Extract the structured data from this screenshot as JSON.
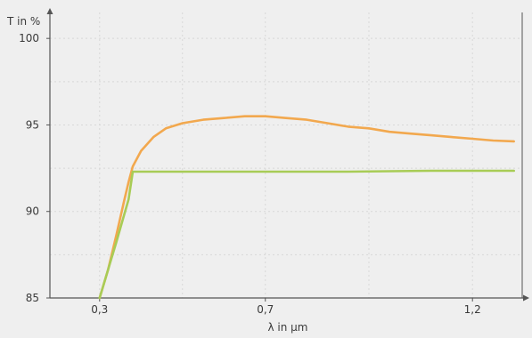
{
  "chart_data": {
    "type": "line",
    "title": "",
    "ylabel": "T in %",
    "xlabel": "λ in µm",
    "xlim": [
      0.18,
      1.32
    ],
    "ylim": [
      85,
      101.5
    ],
    "x_ticks": [
      {
        "value": 0.3,
        "label": "0,3"
      },
      {
        "value": 0.7,
        "label": "0,7"
      },
      {
        "value": 1.2,
        "label": "1,2"
      }
    ],
    "y_ticks": [
      {
        "value": 85,
        "label": "85"
      },
      {
        "value": 90,
        "label": "90"
      },
      {
        "value": 95,
        "label": "95"
      },
      {
        "value": 100,
        "label": "100"
      }
    ],
    "grid": true,
    "legend": "none",
    "series": [
      {
        "color": "#f2a84e",
        "x": [
          0.3,
          0.32,
          0.34,
          0.36,
          0.37,
          0.38,
          0.4,
          0.43,
          0.46,
          0.5,
          0.55,
          0.6,
          0.65,
          0.7,
          0.75,
          0.8,
          0.85,
          0.9,
          0.95,
          1.0,
          1.05,
          1.1,
          1.15,
          1.2,
          1.25,
          1.3
        ],
        "y": [
          85.0,
          86.6,
          88.6,
          90.7,
          91.7,
          92.6,
          93.5,
          94.3,
          94.8,
          95.1,
          95.3,
          95.4,
          95.5,
          95.5,
          95.4,
          95.3,
          95.1,
          94.9,
          94.8,
          94.6,
          94.5,
          94.4,
          94.3,
          94.2,
          94.1,
          94.05
        ]
      },
      {
        "color": "#a8cc56",
        "x": [
          0.3,
          0.34,
          0.37,
          0.38,
          0.4,
          0.5,
          0.7,
          0.9,
          1.1,
          1.3
        ],
        "y": [
          85.0,
          88.2,
          90.7,
          92.3,
          92.3,
          92.3,
          92.3,
          92.3,
          92.35,
          92.35
        ]
      }
    ]
  }
}
